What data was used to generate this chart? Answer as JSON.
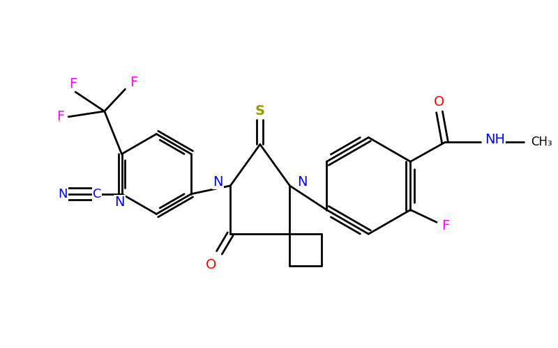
{
  "background_color": "#ffffff",
  "bond_color": "#000000",
  "lw": 2.0,
  "dbo": 0.055,
  "figsize": [
    8.0,
    5.0
  ],
  "dpi": 100,
  "xlim": [
    0.3,
    8.3
  ],
  "ylim": [
    0.5,
    5.0
  ],
  "colors": {
    "N": "#0000ff",
    "O": "#ff0000",
    "S": "#999900",
    "F": "#ff00ff",
    "C": "#000000",
    "bond": "#000000"
  }
}
